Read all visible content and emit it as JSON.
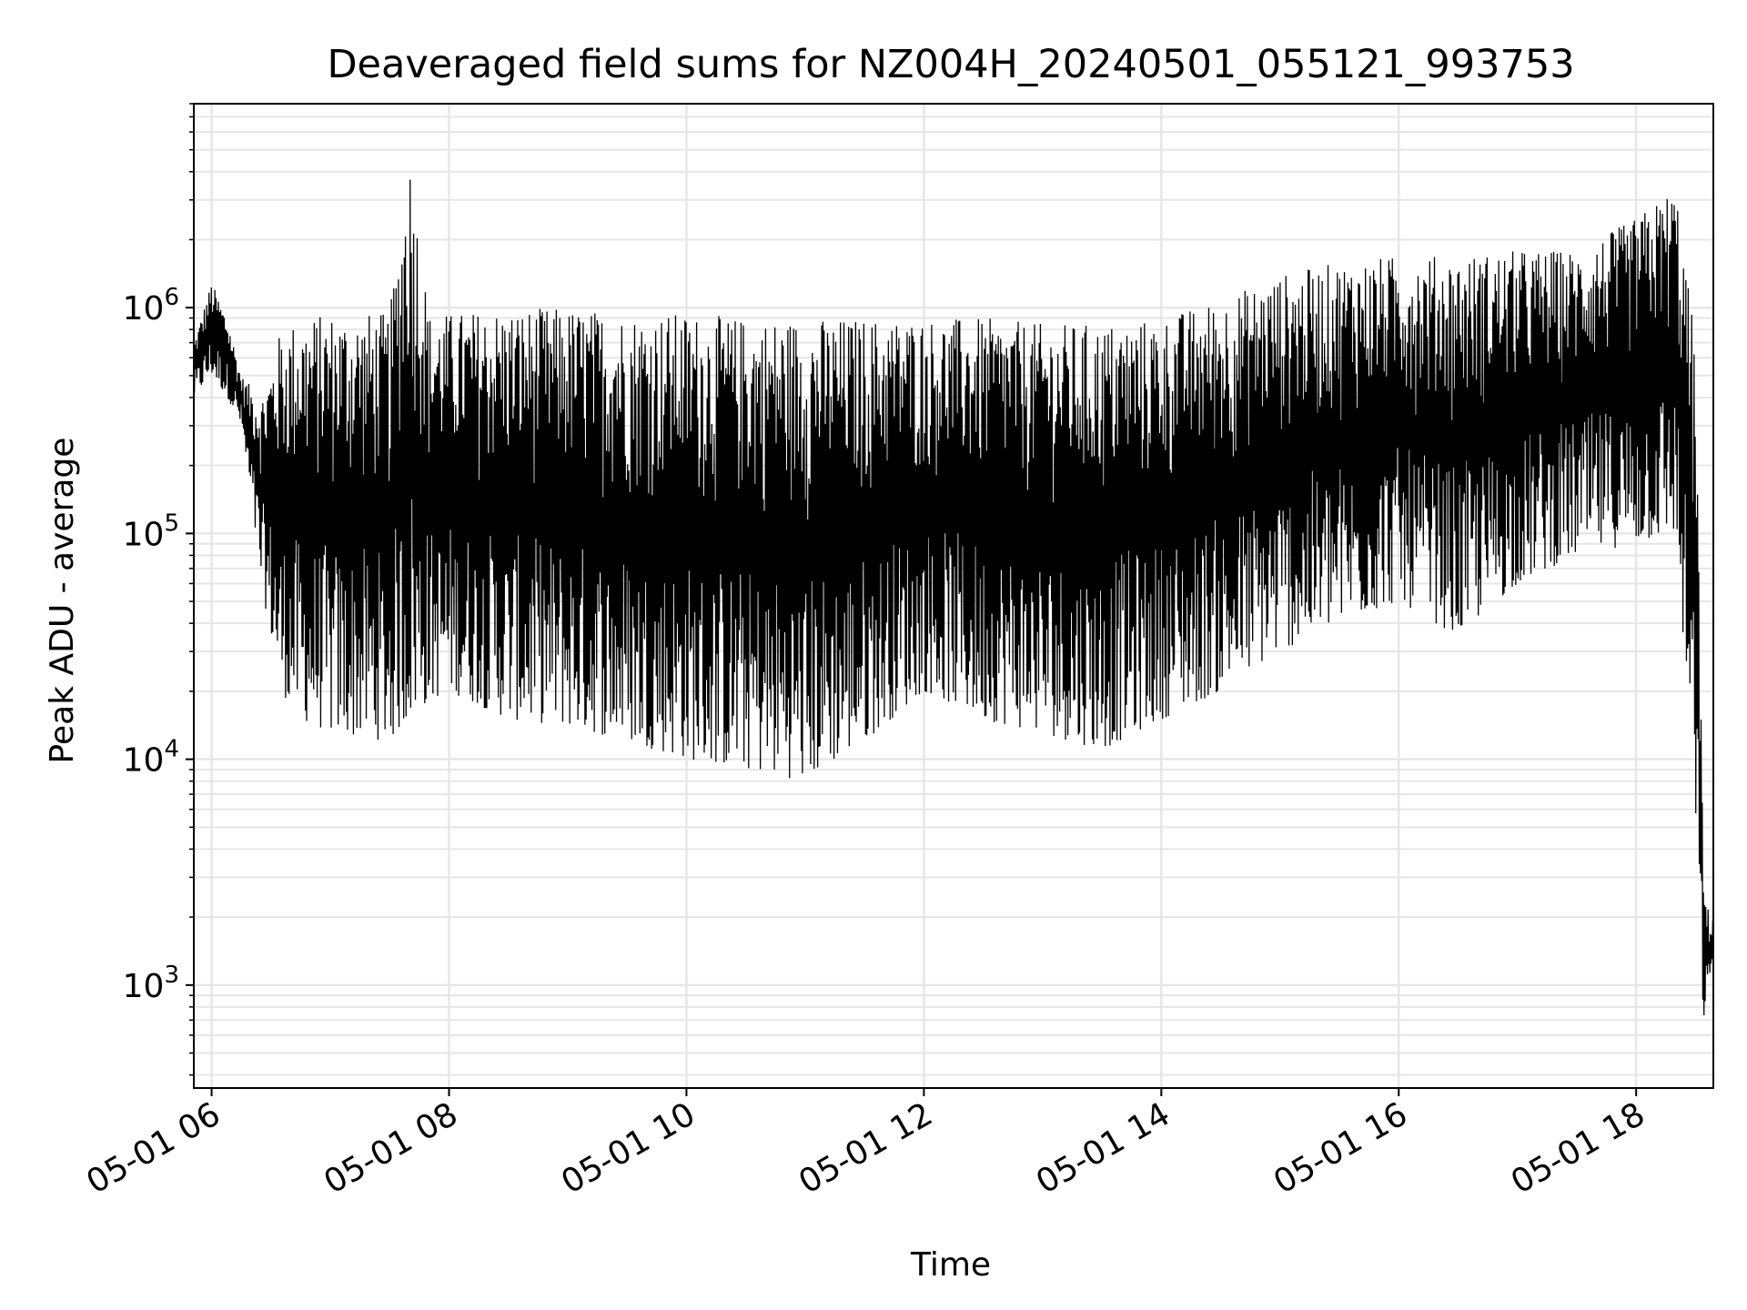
{
  "chart_data": {
    "type": "line",
    "title": "Deaveraged field sums for NZ004H_20240501_055121_993753",
    "xlabel": "Time",
    "ylabel": "Peak ADU - average",
    "yscale": "log",
    "grid": true,
    "legend": "none",
    "xlim": [
      "2024-05-01 05:51",
      "2024-05-01 18:39"
    ],
    "ylim": [
      350,
      8000000
    ],
    "x_ticks": [
      {
        "value": "2024-05-01 06:00",
        "label": "05-01 06"
      },
      {
        "value": "2024-05-01 08:00",
        "label": "05-01 08"
      },
      {
        "value": "2024-05-01 10:00",
        "label": "05-01 10"
      },
      {
        "value": "2024-05-01 12:00",
        "label": "05-01 12"
      },
      {
        "value": "2024-05-01 14:00",
        "label": "05-01 14"
      },
      {
        "value": "2024-05-01 16:00",
        "label": "05-01 16"
      },
      {
        "value": "2024-05-01 18:00",
        "label": "05-01 18"
      }
    ],
    "y_ticks": [
      {
        "value": 1000,
        "base": "10",
        "exp": "3"
      },
      {
        "value": 10000,
        "base": "10",
        "exp": "4"
      },
      {
        "value": 100000,
        "base": "10",
        "exp": "5"
      },
      {
        "value": 1000000,
        "base": "10",
        "exp": "6"
      }
    ],
    "line_color": "#000000",
    "series": [
      {
        "x": [
          "2024-05-01 05:51",
          "2024-05-01 06:00",
          "2024-05-01 06:08",
          "2024-05-01 06:15",
          "2024-05-01 06:25",
          "2024-05-01 06:35",
          "2024-05-01 06:45",
          "2024-05-01 07:00",
          "2024-05-01 07:30",
          "2024-05-01 07:40",
          "2024-05-01 07:50",
          "2024-05-01 08:00",
          "2024-05-01 08:30",
          "2024-05-01 09:00",
          "2024-05-01 09:30",
          "2024-05-01 10:00",
          "2024-05-01 10:30",
          "2024-05-01 11:00",
          "2024-05-01 11:30",
          "2024-05-01 12:00",
          "2024-05-01 12:30",
          "2024-05-01 13:00",
          "2024-05-01 13:30",
          "2024-05-01 14:00",
          "2024-05-01 14:30",
          "2024-05-01 15:00",
          "2024-05-01 15:30",
          "2024-05-01 16:00",
          "2024-05-01 16:30",
          "2024-05-01 17:00",
          "2024-05-01 17:30",
          "2024-05-01 18:00",
          "2024-05-01 18:20",
          "2024-05-01 18:30",
          "2024-05-01 18:34",
          "2024-05-01 18:37",
          "2024-05-01 18:39"
        ],
        "low": [
          400000,
          500000,
          400000,
          300000,
          60000,
          20000,
          15000,
          13000,
          12000,
          15000,
          18000,
          20000,
          15000,
          14000,
          12000,
          10000,
          9000,
          8000,
          12000,
          20000,
          15000,
          13000,
          11000,
          15000,
          20000,
          30000,
          40000,
          50000,
          35000,
          60000,
          80000,
          90000,
          100000,
          5000,
          700,
          900,
          1500
        ],
        "high": [
          700000,
          1300000,
          900000,
          500000,
          400000,
          800000,
          900000,
          950000,
          950000,
          5000000,
          950000,
          950000,
          1000000,
          1000000,
          950000,
          950000,
          900000,
          900000,
          900000,
          900000,
          900000,
          850000,
          850000,
          900000,
          1100000,
          1400000,
          1600000,
          1700000,
          1700000,
          1800000,
          1800000,
          2500000,
          3500000,
          700000,
          3000,
          2000,
          2000
        ]
      }
    ]
  }
}
